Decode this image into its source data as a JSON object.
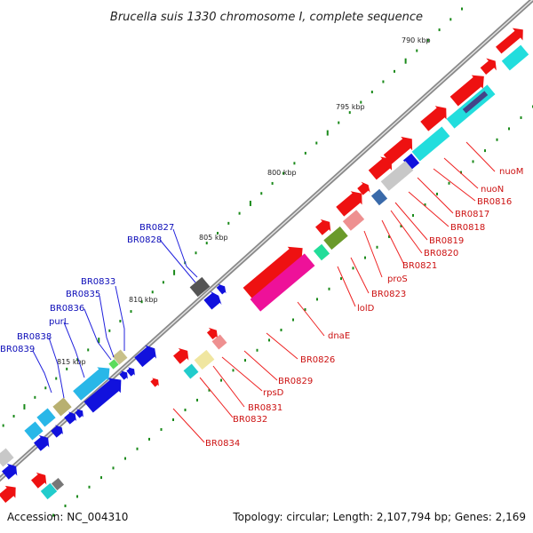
{
  "title": "Brucella suis 1330 chromosome I, complete sequence",
  "footer": {
    "accession": "Accession: NC_004310",
    "topology": "Topology: circular; Length: 2,107,794 bp; Genes: 2,169"
  },
  "scale_labels": [
    "790 kbp",
    "795 kbp",
    "800 kbp",
    "805 kbp",
    "810 kbp",
    "815 kbp"
  ],
  "genes_left": [
    "BR0827",
    "BR0828",
    "BR0833",
    "BR0835",
    "BR0836",
    "purL",
    "BR0838",
    "BR0839"
  ],
  "genes_right": [
    "nuoM",
    "nuoN",
    "BR0816",
    "BR0817",
    "BR0818",
    "BR0819",
    "BR0820",
    "BR0821",
    "proS",
    "BR0823",
    "lolD",
    "dnaE",
    "BR0826",
    "BR0829",
    "rpsD",
    "BR0831",
    "BR0832",
    "BR0834"
  ],
  "colors": {
    "forward_cds": "#ee1111",
    "reverse_cds": "#1111dd",
    "backbone": "#888888",
    "tick": "#1a8a1a",
    "label_line_blue": "#2222dd",
    "label_line_red": "#ee2222"
  }
}
